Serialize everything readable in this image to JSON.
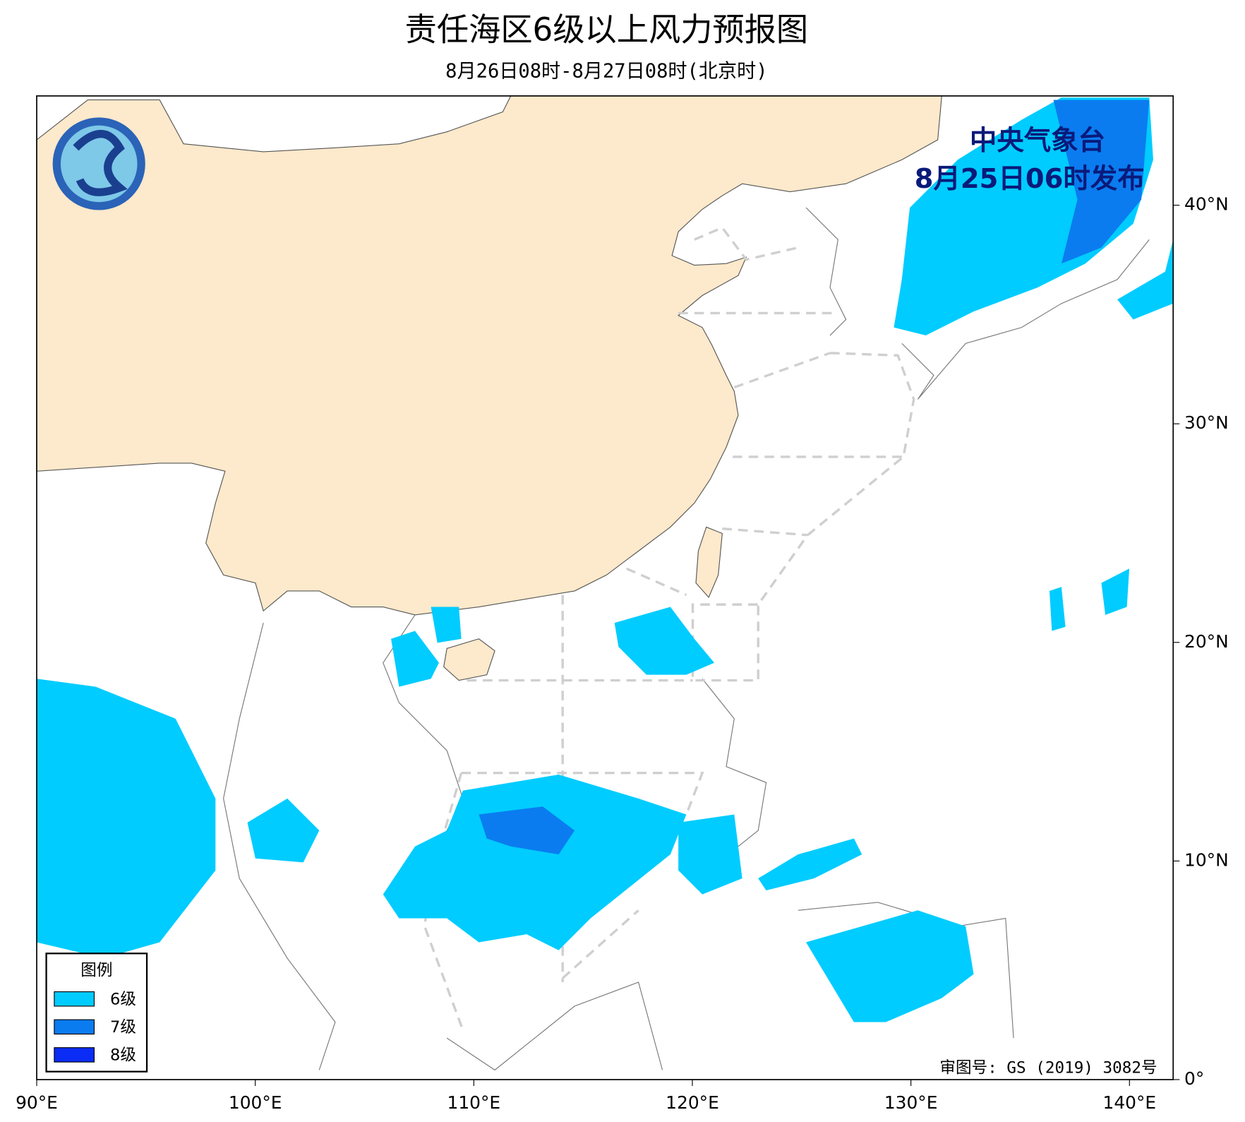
{
  "header": {
    "title": "责任海区6级以上风力预报图",
    "subtitle": "8月26日08时-8月27日08时(北京时)",
    "issuer": "中央气象台",
    "issued": "8月25日06时发布"
  },
  "map": {
    "xlim": [
      90,
      142
    ],
    "ylim": [
      0,
      45
    ],
    "xticks": [
      {
        "value": 90,
        "label": "90°E"
      },
      {
        "value": 100,
        "label": "100°E"
      },
      {
        "value": 110,
        "label": "110°E"
      },
      {
        "value": 120,
        "label": "120°E"
      },
      {
        "value": 130,
        "label": "130°E"
      },
      {
        "value": 140,
        "label": "140°E"
      }
    ],
    "yticks": [
      {
        "value": 0,
        "label": "0°"
      },
      {
        "value": 10,
        "label": "10°N"
      },
      {
        "value": 20,
        "label": "20°N"
      },
      {
        "value": 30,
        "label": "30°N"
      },
      {
        "value": 40,
        "label": "40°N"
      }
    ]
  },
  "legend": {
    "title": "图例",
    "items": [
      "6级",
      "7级",
      "8级"
    ]
  },
  "footer": {
    "review_number": "审图号: GS (2019) 3082号"
  }
}
